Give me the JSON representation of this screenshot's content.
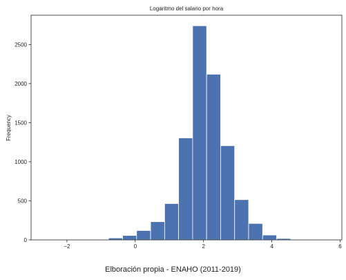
{
  "chart_data": {
    "type": "bar",
    "title": "Logaritmo del salario por hora",
    "xlabel": "",
    "ylabel": "Frequency",
    "caption": "Elboración propia - ENAHO (2011-2019)",
    "bar_color": "#4c72b0",
    "bin_width": 0.41,
    "bins": [
      {
        "x0": -2.83,
        "count": 0
      },
      {
        "x0": -2.42,
        "count": 0
      },
      {
        "x0": -2.01,
        "count": 0
      },
      {
        "x0": -1.6,
        "count": 3
      },
      {
        "x0": -1.19,
        "count": 8
      },
      {
        "x0": -0.78,
        "count": 25
      },
      {
        "x0": -0.37,
        "count": 57
      },
      {
        "x0": 0.04,
        "count": 120
      },
      {
        "x0": 0.45,
        "count": 233
      },
      {
        "x0": 0.86,
        "count": 465
      },
      {
        "x0": 1.27,
        "count": 1305
      },
      {
        "x0": 1.68,
        "count": 2740
      },
      {
        "x0": 2.09,
        "count": 2120
      },
      {
        "x0": 2.5,
        "count": 1205
      },
      {
        "x0": 2.91,
        "count": 515
      },
      {
        "x0": 3.32,
        "count": 210
      },
      {
        "x0": 3.73,
        "count": 62
      },
      {
        "x0": 4.14,
        "count": 18
      },
      {
        "x0": 4.55,
        "count": 5
      },
      {
        "x0": 4.96,
        "count": 2
      },
      {
        "x0": 5.37,
        "count": 1
      }
    ],
    "xlim": [
      -3.05,
      6.05
    ],
    "ylim": [
      0,
      2875
    ],
    "xticks": [
      -2,
      0,
      2,
      4,
      6
    ],
    "xtick_labels": [
      "−2",
      "0",
      "2",
      "4",
      "6"
    ],
    "yticks": [
      0,
      500,
      1000,
      1500,
      2000,
      2500
    ],
    "ytick_labels": [
      "0",
      "500",
      "1000",
      "1500",
      "2000",
      "2500"
    ],
    "grid": false,
    "legend": "none"
  }
}
